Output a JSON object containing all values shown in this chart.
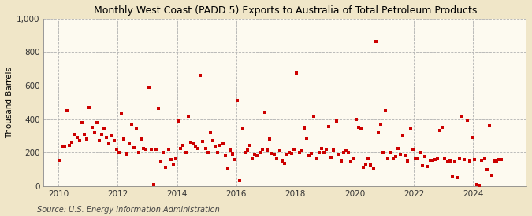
{
  "title": "Monthly West Coast (PADD 5) Exports to Australia of Total Petroleum Products",
  "ylabel": "Thousand Barrels",
  "source": "Source: U.S. Energy Information Administration",
  "fig_background_color": "#f0e6c8",
  "plot_background_color": "#fdfaf0",
  "marker_color": "#cc0000",
  "marker": "s",
  "marker_size": 3.5,
  "xlim": [
    2009.5,
    2025.8
  ],
  "ylim": [
    0,
    1000
  ],
  "yticks": [
    0,
    200,
    400,
    600,
    800,
    1000
  ],
  "ytick_labels": [
    "0",
    "200",
    "400",
    "600",
    "800",
    "1,000"
  ],
  "xticks": [
    2010,
    2012,
    2014,
    2016,
    2018,
    2020,
    2022,
    2024
  ],
  "data": {
    "2010-01": 155,
    "2010-02": 240,
    "2010-03": 235,
    "2010-04": 450,
    "2010-05": 245,
    "2010-06": 260,
    "2010-07": 310,
    "2010-08": 290,
    "2010-09": 270,
    "2010-10": 380,
    "2010-11": 310,
    "2010-12": 280,
    "2011-01": 470,
    "2011-02": 350,
    "2011-03": 320,
    "2011-04": 380,
    "2011-05": 270,
    "2011-06": 310,
    "2011-07": 340,
    "2011-08": 290,
    "2011-09": 250,
    "2011-10": 300,
    "2011-11": 270,
    "2011-12": 220,
    "2012-01": 200,
    "2012-02": 430,
    "2012-03": 280,
    "2012-04": 190,
    "2012-05": 250,
    "2012-06": 370,
    "2012-07": 230,
    "2012-08": 340,
    "2012-09": 200,
    "2012-10": 280,
    "2012-11": 225,
    "2012-12": 220,
    "2013-01": 590,
    "2013-02": 220,
    "2013-03": 10,
    "2013-04": 220,
    "2013-05": 465,
    "2013-06": 145,
    "2013-07": 200,
    "2013-08": 110,
    "2013-09": 220,
    "2013-10": 160,
    "2013-11": 130,
    "2013-12": 165,
    "2014-01": 390,
    "2014-02": 225,
    "2014-03": 245,
    "2014-04": 200,
    "2014-05": 415,
    "2014-06": 260,
    "2014-07": 250,
    "2014-08": 240,
    "2014-09": 225,
    "2014-10": 660,
    "2014-11": 265,
    "2014-12": 225,
    "2015-01": 200,
    "2015-02": 320,
    "2015-03": 270,
    "2015-04": 240,
    "2015-05": 200,
    "2015-06": 245,
    "2015-07": 250,
    "2015-08": 180,
    "2015-09": 105,
    "2015-10": 215,
    "2015-11": 190,
    "2015-12": 160,
    "2016-01": 510,
    "2016-02": 30,
    "2016-03": 340,
    "2016-04": 200,
    "2016-05": 215,
    "2016-06": 245,
    "2016-07": 165,
    "2016-08": 185,
    "2016-09": 180,
    "2016-10": 200,
    "2016-11": 220,
    "2016-12": 440,
    "2017-01": 215,
    "2017-02": 280,
    "2017-03": 195,
    "2017-04": 185,
    "2017-05": 165,
    "2017-06": 210,
    "2017-07": 150,
    "2017-08": 135,
    "2017-09": 185,
    "2017-10": 200,
    "2017-11": 195,
    "2017-12": 220,
    "2018-01": 675,
    "2018-02": 200,
    "2018-03": 210,
    "2018-04": 345,
    "2018-05": 285,
    "2018-06": 180,
    "2018-07": 195,
    "2018-08": 415,
    "2018-09": 165,
    "2018-10": 200,
    "2018-11": 225,
    "2018-12": 200,
    "2019-01": 220,
    "2019-02": 355,
    "2019-03": 170,
    "2019-04": 215,
    "2019-05": 390,
    "2019-06": 185,
    "2019-07": 150,
    "2019-08": 200,
    "2019-09": 210,
    "2019-10": 200,
    "2019-11": 145,
    "2019-12": 165,
    "2020-01": 400,
    "2020-02": 350,
    "2020-03": 340,
    "2020-04": 110,
    "2020-05": 130,
    "2020-06": 165,
    "2020-07": 125,
    "2020-08": 100,
    "2020-09": 865,
    "2020-10": 320,
    "2020-11": 370,
    "2020-12": 200,
    "2021-01": 450,
    "2021-02": 165,
    "2021-03": 200,
    "2021-04": 165,
    "2021-05": 175,
    "2021-06": 225,
    "2021-07": 185,
    "2021-08": 300,
    "2021-09": 180,
    "2021-10": 150,
    "2021-11": 340,
    "2021-12": 220,
    "2022-01": 165,
    "2022-02": 165,
    "2022-03": 200,
    "2022-04": 120,
    "2022-05": 175,
    "2022-06": 115,
    "2022-07": 155,
    "2022-08": 155,
    "2022-09": 160,
    "2022-10": 165,
    "2022-11": 330,
    "2022-12": 350,
    "2023-01": 165,
    "2023-02": 145,
    "2023-03": 150,
    "2023-04": 55,
    "2023-05": 145,
    "2023-06": 50,
    "2023-07": 165,
    "2023-08": 415,
    "2023-09": 160,
    "2023-10": 395,
    "2023-11": 150,
    "2023-12": 290,
    "2024-01": 160,
    "2024-02": 10,
    "2024-03": 5,
    "2024-04": 155,
    "2024-05": 165,
    "2024-06": 95,
    "2024-07": 360,
    "2024-08": 65,
    "2024-09": 150,
    "2024-10": 150,
    "2024-11": 160,
    "2024-12": 160
  }
}
